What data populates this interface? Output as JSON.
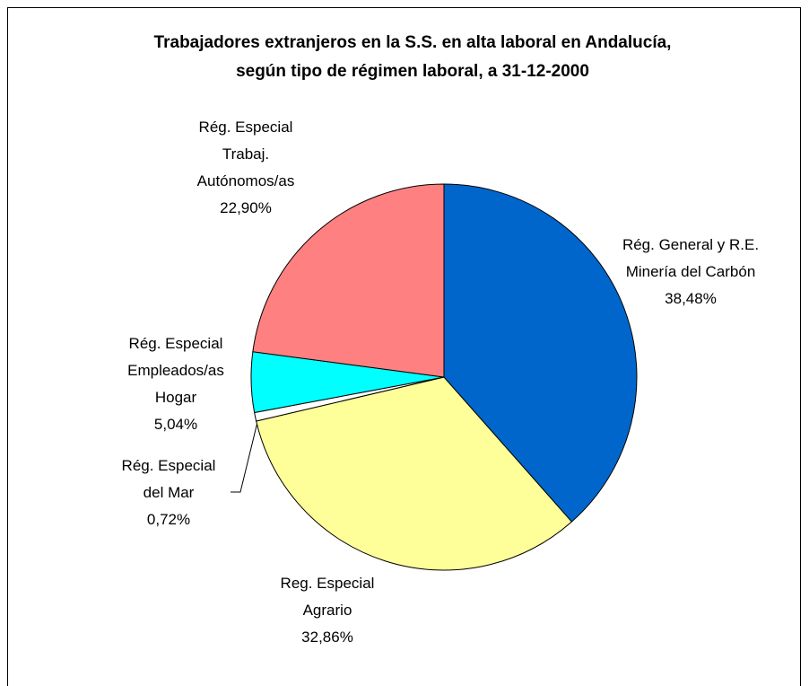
{
  "chart_data": {
    "type": "pie",
    "title": "Trabajadores extranjeros en la S.S. en alta laboral en Andalucía, según tipo de régimen laboral, a 31-12-2000",
    "categories": [
      "Rég. General y R.E. Minería del Carbón",
      "Reg. Especial Agrario",
      "Rég. Especial del Mar",
      "Rég. Especial Empleados/as Hogar",
      "Rég. Especial Trabaj. Autónomos/as"
    ],
    "values": [
      38.48,
      32.86,
      0.72,
      5.04,
      22.9
    ],
    "value_labels": [
      "38,48%",
      "32,86%",
      "0,72%",
      "5,04%",
      "22,90%"
    ],
    "colors": [
      "#0066cc",
      "#ffff99",
      "#ffffff",
      "#00ffff",
      "#ff8080"
    ]
  }
}
